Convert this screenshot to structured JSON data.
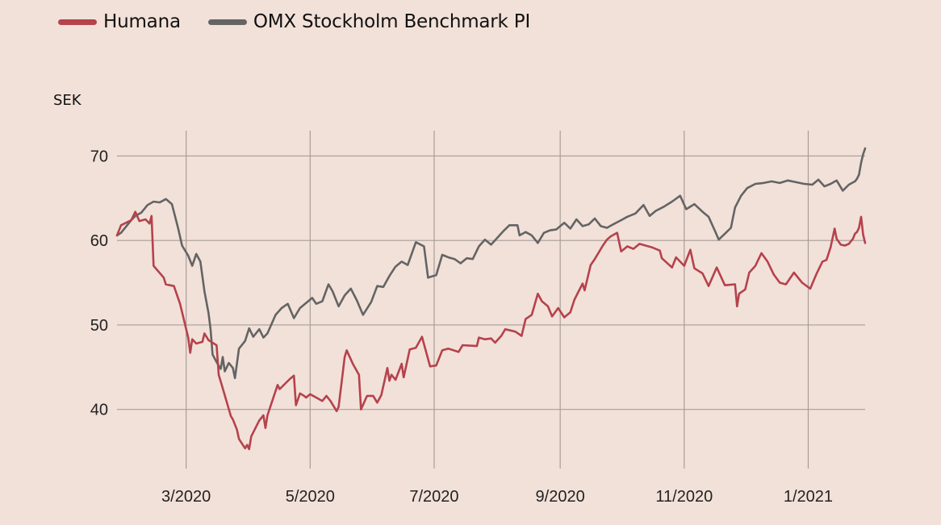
{
  "legend": {
    "items": [
      {
        "label": "Humana",
        "color": "#b5424c"
      },
      {
        "label": "OMX Stockholm Benchmark PI",
        "color": "#646464"
      }
    ]
  },
  "chart_data": {
    "type": "line",
    "ylabel": "SEK",
    "x_unit": "date",
    "xlim": [
      "2020-01-27",
      "2021-01-29"
    ],
    "ylim": [
      33,
      73
    ],
    "grid": true,
    "legend_position": "top-left",
    "x_tick_labels": [
      "3/2020",
      "5/2020",
      "7/2020",
      "9/2020",
      "11/2020",
      "1/2021"
    ],
    "x_tick_dates": [
      "2020-03-01",
      "2020-05-01",
      "2020-07-01",
      "2020-09-01",
      "2020-11-01",
      "2021-01-01"
    ],
    "y_ticks": [
      40,
      50,
      60,
      70
    ],
    "series": [
      {
        "name": "Humana",
        "color": "#b5424c",
        "points": [
          [
            "2020-01-27",
            60.6
          ],
          [
            "2020-01-29",
            61.8
          ],
          [
            "2020-02-03",
            62.4
          ],
          [
            "2020-02-05",
            63.4
          ],
          [
            "2020-02-07",
            62.3
          ],
          [
            "2020-02-10",
            62.5
          ],
          [
            "2020-02-12",
            62.0
          ],
          [
            "2020-02-13",
            62.9
          ],
          [
            "2020-02-14",
            57.0
          ],
          [
            "2020-02-19",
            55.6
          ],
          [
            "2020-02-20",
            54.8
          ],
          [
            "2020-02-24",
            54.6
          ],
          [
            "2020-02-27",
            52.5
          ],
          [
            "2020-03-02",
            48.5
          ],
          [
            "2020-03-03",
            46.7
          ],
          [
            "2020-03-04",
            48.3
          ],
          [
            "2020-03-06",
            47.8
          ],
          [
            "2020-03-09",
            48.0
          ],
          [
            "2020-03-10",
            49.0
          ],
          [
            "2020-03-12",
            48.2
          ],
          [
            "2020-03-16",
            47.6
          ],
          [
            "2020-03-17",
            44.1
          ],
          [
            "2020-03-19",
            42.5
          ],
          [
            "2020-03-23",
            39.2
          ],
          [
            "2020-03-24",
            38.8
          ],
          [
            "2020-03-26",
            37.6
          ],
          [
            "2020-03-27",
            36.5
          ],
          [
            "2020-03-30",
            35.4
          ],
          [
            "2020-03-31",
            35.8
          ],
          [
            "2020-04-01",
            35.3
          ],
          [
            "2020-04-02",
            36.8
          ],
          [
            "2020-04-06",
            38.7
          ],
          [
            "2020-04-08",
            39.3
          ],
          [
            "2020-04-09",
            37.8
          ],
          [
            "2020-04-10",
            39.3
          ],
          [
            "2020-04-15",
            42.9
          ],
          [
            "2020-04-16",
            42.4
          ],
          [
            "2020-04-21",
            43.6
          ],
          [
            "2020-04-23",
            44.0
          ],
          [
            "2020-04-24",
            40.5
          ],
          [
            "2020-04-26",
            41.9
          ],
          [
            "2020-04-28",
            41.6
          ],
          [
            "2020-04-29",
            41.4
          ],
          [
            "2020-05-01",
            41.8
          ],
          [
            "2020-05-04",
            41.4
          ],
          [
            "2020-05-07",
            41.0
          ],
          [
            "2020-05-09",
            41.6
          ],
          [
            "2020-05-11",
            41.0
          ],
          [
            "2020-05-14",
            39.8
          ],
          [
            "2020-05-15",
            40.3
          ],
          [
            "2020-05-18",
            46.2
          ],
          [
            "2020-05-19",
            47.0
          ],
          [
            "2020-05-22",
            45.4
          ],
          [
            "2020-05-25",
            44.1
          ],
          [
            "2020-05-26",
            40.0
          ],
          [
            "2020-05-29",
            41.6
          ],
          [
            "2020-06-01",
            41.6
          ],
          [
            "2020-06-03",
            40.8
          ],
          [
            "2020-06-05",
            41.7
          ],
          [
            "2020-06-08",
            44.9
          ],
          [
            "2020-06-09",
            43.4
          ],
          [
            "2020-06-10",
            44.1
          ],
          [
            "2020-06-12",
            43.5
          ],
          [
            "2020-06-15",
            45.4
          ],
          [
            "2020-06-16",
            43.8
          ],
          [
            "2020-06-19",
            47.1
          ],
          [
            "2020-06-22",
            47.3
          ],
          [
            "2020-06-25",
            48.6
          ],
          [
            "2020-06-29",
            45.1
          ],
          [
            "2020-07-02",
            45.2
          ],
          [
            "2020-07-05",
            47.0
          ],
          [
            "2020-07-08",
            47.2
          ],
          [
            "2020-07-13",
            46.8
          ],
          [
            "2020-07-15",
            47.6
          ],
          [
            "2020-07-22",
            47.5
          ],
          [
            "2020-07-23",
            48.5
          ],
          [
            "2020-07-26",
            48.3
          ],
          [
            "2020-07-29",
            48.4
          ],
          [
            "2020-07-31",
            47.9
          ],
          [
            "2020-08-03",
            48.7
          ],
          [
            "2020-08-05",
            49.5
          ],
          [
            "2020-08-10",
            49.2
          ],
          [
            "2020-08-13",
            48.7
          ],
          [
            "2020-08-15",
            50.7
          ],
          [
            "2020-08-18",
            51.2
          ],
          [
            "2020-08-21",
            53.7
          ],
          [
            "2020-08-23",
            52.8
          ],
          [
            "2020-08-26",
            52.2
          ],
          [
            "2020-08-28",
            51.0
          ],
          [
            "2020-08-31",
            52.0
          ],
          [
            "2020-09-03",
            50.9
          ],
          [
            "2020-09-06",
            51.5
          ],
          [
            "2020-09-08",
            53.0
          ],
          [
            "2020-09-12",
            54.9
          ],
          [
            "2020-09-13",
            54.1
          ],
          [
            "2020-09-16",
            57.1
          ],
          [
            "2020-09-18",
            57.8
          ],
          [
            "2020-09-22",
            59.4
          ],
          [
            "2020-09-24",
            60.1
          ],
          [
            "2020-09-26",
            60.5
          ],
          [
            "2020-09-29",
            60.9
          ],
          [
            "2020-10-01",
            58.7
          ],
          [
            "2020-10-04",
            59.3
          ],
          [
            "2020-10-07",
            59.0
          ],
          [
            "2020-10-10",
            59.6
          ],
          [
            "2020-10-13",
            59.4
          ],
          [
            "2020-10-16",
            59.2
          ],
          [
            "2020-10-20",
            58.8
          ],
          [
            "2020-10-21",
            57.9
          ],
          [
            "2020-10-26",
            56.8
          ],
          [
            "2020-10-28",
            58.0
          ],
          [
            "2020-11-01",
            57.0
          ],
          [
            "2020-11-04",
            58.9
          ],
          [
            "2020-11-06",
            56.7
          ],
          [
            "2020-11-10",
            56.1
          ],
          [
            "2020-11-13",
            54.6
          ],
          [
            "2020-11-17",
            56.8
          ],
          [
            "2020-11-21",
            54.7
          ],
          [
            "2020-11-26",
            54.8
          ],
          [
            "2020-11-27",
            52.2
          ],
          [
            "2020-11-28",
            53.7
          ],
          [
            "2020-12-01",
            54.2
          ],
          [
            "2020-12-03",
            56.2
          ],
          [
            "2020-12-06",
            57.0
          ],
          [
            "2020-12-09",
            58.5
          ],
          [
            "2020-12-12",
            57.5
          ],
          [
            "2020-12-15",
            56.0
          ],
          [
            "2020-12-18",
            55.0
          ],
          [
            "2020-12-21",
            54.8
          ],
          [
            "2020-12-25",
            56.2
          ],
          [
            "2020-12-29",
            55.0
          ],
          [
            "2021-01-02",
            54.3
          ],
          [
            "2021-01-05",
            56.0
          ],
          [
            "2021-01-08",
            57.5
          ],
          [
            "2021-01-10",
            57.7
          ],
          [
            "2021-01-12",
            59.2
          ],
          [
            "2021-01-14",
            61.4
          ],
          [
            "2021-01-15",
            60.2
          ],
          [
            "2021-01-17",
            59.5
          ],
          [
            "2021-01-19",
            59.4
          ],
          [
            "2021-01-21",
            59.6
          ],
          [
            "2021-01-23",
            60.2
          ],
          [
            "2021-01-24",
            60.8
          ],
          [
            "2021-01-25",
            61.0
          ],
          [
            "2021-01-26",
            61.5
          ],
          [
            "2021-01-27",
            62.8
          ],
          [
            "2021-01-28",
            60.7
          ],
          [
            "2021-01-29",
            59.7
          ]
        ]
      },
      {
        "name": "OMX Stockholm Benchmark PI",
        "color": "#646464",
        "points": [
          [
            "2020-01-27",
            60.6
          ],
          [
            "2020-01-29",
            60.9
          ],
          [
            "2020-02-03",
            62.4
          ],
          [
            "2020-02-05",
            62.9
          ],
          [
            "2020-02-08",
            63.3
          ],
          [
            "2020-02-11",
            64.2
          ],
          [
            "2020-02-14",
            64.6
          ],
          [
            "2020-02-17",
            64.5
          ],
          [
            "2020-02-20",
            64.9
          ],
          [
            "2020-02-23",
            64.3
          ],
          [
            "2020-02-26",
            61.5
          ],
          [
            "2020-02-28",
            59.4
          ],
          [
            "2020-03-02",
            58.2
          ],
          [
            "2020-03-04",
            57.0
          ],
          [
            "2020-03-06",
            58.4
          ],
          [
            "2020-03-08",
            57.5
          ],
          [
            "2020-03-10",
            54.0
          ],
          [
            "2020-03-12",
            51.4
          ],
          [
            "2020-03-13",
            49.5
          ],
          [
            "2020-03-14",
            46.5
          ],
          [
            "2020-03-16",
            45.6
          ],
          [
            "2020-03-18",
            44.8
          ],
          [
            "2020-03-19",
            46.2
          ],
          [
            "2020-03-20",
            44.5
          ],
          [
            "2020-03-22",
            45.5
          ],
          [
            "2020-03-24",
            44.9
          ],
          [
            "2020-03-25",
            43.7
          ],
          [
            "2020-03-27",
            47.2
          ],
          [
            "2020-03-30",
            48.1
          ],
          [
            "2020-04-01",
            49.6
          ],
          [
            "2020-04-03",
            48.6
          ],
          [
            "2020-04-06",
            49.5
          ],
          [
            "2020-04-08",
            48.5
          ],
          [
            "2020-04-10",
            49.0
          ],
          [
            "2020-04-14",
            51.2
          ],
          [
            "2020-04-17",
            52.0
          ],
          [
            "2020-04-20",
            52.5
          ],
          [
            "2020-04-23",
            50.8
          ],
          [
            "2020-04-26",
            52.0
          ],
          [
            "2020-04-28",
            52.4
          ],
          [
            "2020-05-02",
            53.2
          ],
          [
            "2020-05-04",
            52.5
          ],
          [
            "2020-05-07",
            52.8
          ],
          [
            "2020-05-10",
            54.8
          ],
          [
            "2020-05-12",
            54.0
          ],
          [
            "2020-05-15",
            52.2
          ],
          [
            "2020-05-18",
            53.5
          ],
          [
            "2020-05-21",
            54.3
          ],
          [
            "2020-05-24",
            52.9
          ],
          [
            "2020-05-27",
            51.2
          ],
          [
            "2020-05-31",
            52.7
          ],
          [
            "2020-06-03",
            54.6
          ],
          [
            "2020-06-06",
            54.5
          ],
          [
            "2020-06-09",
            55.8
          ],
          [
            "2020-06-12",
            56.9
          ],
          [
            "2020-06-15",
            57.5
          ],
          [
            "2020-06-18",
            57.1
          ],
          [
            "2020-06-22",
            59.8
          ],
          [
            "2020-06-26",
            59.3
          ],
          [
            "2020-06-28",
            55.6
          ],
          [
            "2020-07-02",
            55.9
          ],
          [
            "2020-07-05",
            58.3
          ],
          [
            "2020-07-08",
            58.0
          ],
          [
            "2020-07-11",
            57.8
          ],
          [
            "2020-07-14",
            57.3
          ],
          [
            "2020-07-17",
            57.9
          ],
          [
            "2020-07-20",
            57.8
          ],
          [
            "2020-07-23",
            59.3
          ],
          [
            "2020-07-26",
            60.1
          ],
          [
            "2020-07-29",
            59.5
          ],
          [
            "2020-08-01",
            60.3
          ],
          [
            "2020-08-04",
            61.1
          ],
          [
            "2020-08-07",
            61.8
          ],
          [
            "2020-08-11",
            61.8
          ],
          [
            "2020-08-12",
            60.6
          ],
          [
            "2020-08-15",
            61.0
          ],
          [
            "2020-08-18",
            60.6
          ],
          [
            "2020-08-21",
            59.7
          ],
          [
            "2020-08-24",
            60.9
          ],
          [
            "2020-08-27",
            61.2
          ],
          [
            "2020-08-30",
            61.3
          ],
          [
            "2020-09-03",
            62.1
          ],
          [
            "2020-09-06",
            61.4
          ],
          [
            "2020-09-09",
            62.5
          ],
          [
            "2020-09-12",
            61.7
          ],
          [
            "2020-09-15",
            61.9
          ],
          [
            "2020-09-18",
            62.6
          ],
          [
            "2020-09-21",
            61.7
          ],
          [
            "2020-09-24",
            61.5
          ],
          [
            "2020-09-27",
            61.9
          ],
          [
            "2020-10-01",
            62.4
          ],
          [
            "2020-10-04",
            62.8
          ],
          [
            "2020-10-08",
            63.2
          ],
          [
            "2020-10-12",
            64.2
          ],
          [
            "2020-10-15",
            62.9
          ],
          [
            "2020-10-18",
            63.5
          ],
          [
            "2020-10-22",
            64.0
          ],
          [
            "2020-10-26",
            64.6
          ],
          [
            "2020-10-30",
            65.3
          ],
          [
            "2020-11-02",
            63.7
          ],
          [
            "2020-11-06",
            64.3
          ],
          [
            "2020-11-10",
            63.4
          ],
          [
            "2020-11-13",
            62.8
          ],
          [
            "2020-11-16",
            61.2
          ],
          [
            "2020-11-18",
            60.1
          ],
          [
            "2020-11-21",
            60.8
          ],
          [
            "2020-11-24",
            61.5
          ],
          [
            "2020-11-26",
            63.9
          ],
          [
            "2020-11-29",
            65.3
          ],
          [
            "2020-12-02",
            66.2
          ],
          [
            "2020-12-06",
            66.7
          ],
          [
            "2020-12-10",
            66.8
          ],
          [
            "2020-12-14",
            67.0
          ],
          [
            "2020-12-18",
            66.8
          ],
          [
            "2020-12-22",
            67.1
          ],
          [
            "2020-12-26",
            66.9
          ],
          [
            "2020-12-30",
            66.7
          ],
          [
            "2021-01-03",
            66.6
          ],
          [
            "2021-01-06",
            67.2
          ],
          [
            "2021-01-09",
            66.4
          ],
          [
            "2021-01-12",
            66.7
          ],
          [
            "2021-01-15",
            67.1
          ],
          [
            "2021-01-18",
            65.9
          ],
          [
            "2021-01-21",
            66.6
          ],
          [
            "2021-01-24",
            67.0
          ],
          [
            "2021-01-25",
            67.3
          ],
          [
            "2021-01-26",
            67.8
          ],
          [
            "2021-01-27",
            69.2
          ],
          [
            "2021-01-28",
            70.2
          ],
          [
            "2021-01-29",
            70.9
          ]
        ]
      }
    ]
  }
}
